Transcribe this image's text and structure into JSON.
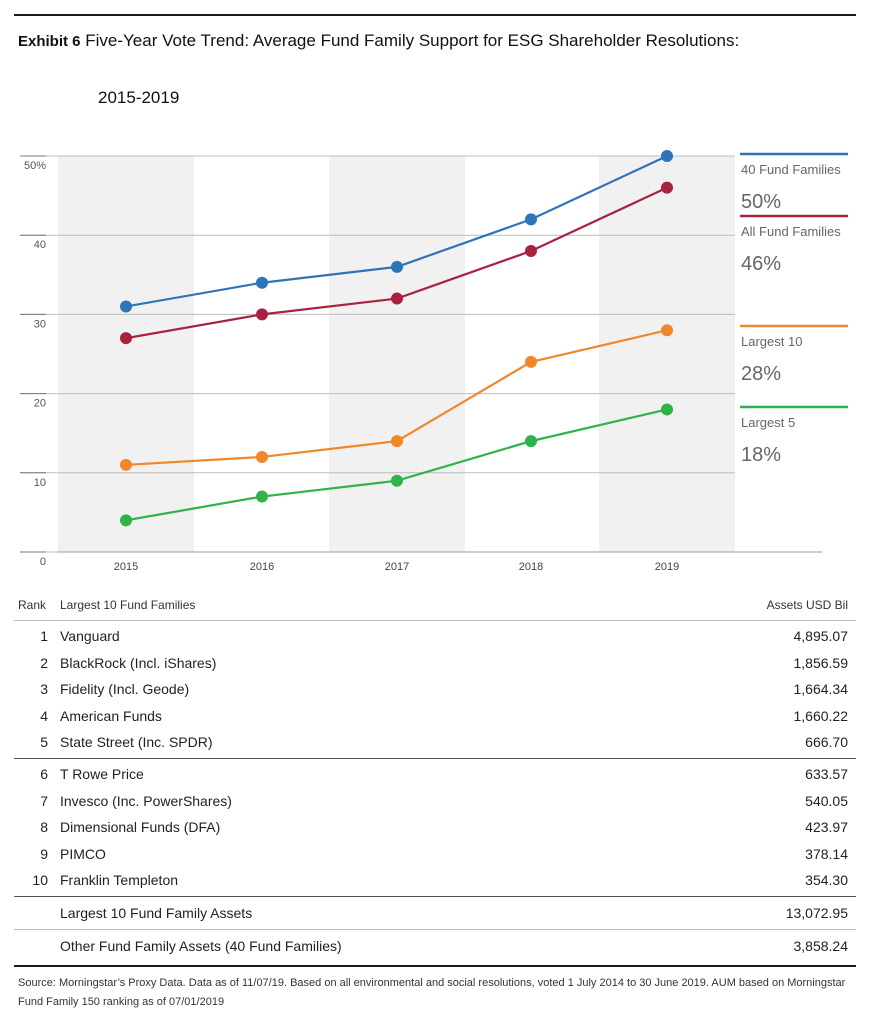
{
  "header": {
    "exhibit_label": "Exhibit 6",
    "title": "Five-Year Vote Trend: Average Fund Family Support for ESG Shareholder Resolutions:",
    "subtitle": "2015-2019"
  },
  "chart_data": {
    "type": "line",
    "title": "Five-Year Vote Trend: Average Fund Family Support for ESG Shareholder Resolutions: 2015-2019",
    "xlabel": "",
    "ylabel": "",
    "x": [
      "2015",
      "2016",
      "2017",
      "2018",
      "2019"
    ],
    "ylim": [
      0,
      50
    ],
    "y_ticks": [
      "0",
      "10",
      "20",
      "30",
      "40",
      "50%"
    ],
    "grid": true,
    "series": [
      {
        "name": "40 Fund Families",
        "color": "#2f73b8",
        "values": [
          31,
          34,
          36,
          42,
          50
        ],
        "end_label": "50%"
      },
      {
        "name": "All Fund Families",
        "color": "#a8223f",
        "values": [
          27,
          30,
          32,
          38,
          46
        ],
        "end_label": "46%"
      },
      {
        "name": "Largest 10",
        "color": "#f0872b",
        "values": [
          11,
          12,
          14,
          24,
          28
        ],
        "end_label": "28%"
      },
      {
        "name": "Largest 5",
        "color": "#2fb34a",
        "values": [
          4,
          7,
          9,
          14,
          18
        ],
        "end_label": "18%"
      }
    ]
  },
  "table": {
    "rank_header": "Rank",
    "name_header": "Largest 10 Fund Families",
    "assets_header": "Assets USD Bil",
    "rows": [
      {
        "rank": "1",
        "name": "Vanguard",
        "assets": "4,895.07"
      },
      {
        "rank": "2",
        "name": "BlackRock (Incl. iShares)",
        "assets": "1,856.59"
      },
      {
        "rank": "3",
        "name": "Fidelity (Incl. Geode)",
        "assets": "1,664.34"
      },
      {
        "rank": "4",
        "name": "American Funds",
        "assets": "1,660.22"
      },
      {
        "rank": "5",
        "name": "State Street (Inc. SPDR)",
        "assets": "666.70"
      },
      {
        "rank": "6",
        "name": "T Rowe Price",
        "assets": "633.57"
      },
      {
        "rank": "7",
        "name": "Invesco (Inc. PowerShares)",
        "assets": "540.05"
      },
      {
        "rank": "8",
        "name": "Dimensional Funds (DFA)",
        "assets": "423.97"
      },
      {
        "rank": "9",
        "name": "PIMCO",
        "assets": "378.14"
      },
      {
        "rank": "10",
        "name": "Franklin Templeton",
        "assets": "354.30"
      }
    ],
    "totals": [
      {
        "name": "Largest 10 Fund Family Assets",
        "assets": "13,072.95"
      },
      {
        "name": "Other Fund Family Assets (40 Fund Families)",
        "assets": "3,858.24"
      }
    ]
  },
  "source": "Source: Morningstar’s Proxy Data. Data as of 11/07/19. Based on all environmental and social resolutions, voted 1 July 2014 to 30 June 2019. AUM based on Morningstar Fund Family 150 ranking as of 07/01/2019"
}
